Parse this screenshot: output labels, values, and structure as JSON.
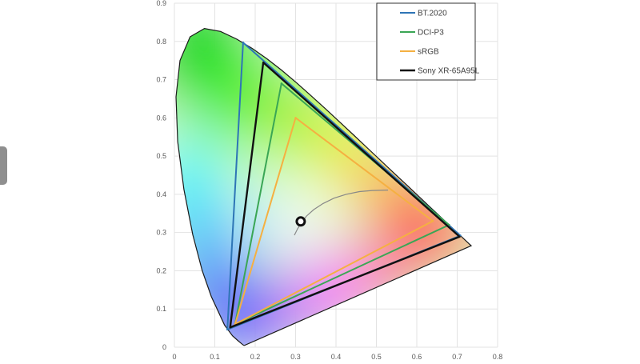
{
  "chart_data": {
    "type": "scatter",
    "title": "",
    "xlabel": "",
    "ylabel": "",
    "xlim": [
      0,
      0.8
    ],
    "ylim": [
      0,
      0.9
    ],
    "xticks": [
      "0",
      "0.1",
      "0.2",
      "0.3",
      "0.4",
      "0.5",
      "0.6",
      "0.7",
      "0.8"
    ],
    "yticks": [
      "0",
      "0.1",
      "0.2",
      "0.3",
      "0.4",
      "0.5",
      "0.6",
      "0.7",
      "0.8",
      "0.9"
    ],
    "grid": true,
    "legend_position": "top-right",
    "locus": [
      [
        0.1741,
        0.005
      ],
      [
        0.1738,
        0.0049
      ],
      [
        0.1733,
        0.0048
      ],
      [
        0.1726,
        0.0048
      ],
      [
        0.1714,
        0.0051
      ],
      [
        0.1689,
        0.0069
      ],
      [
        0.1644,
        0.0109
      ],
      [
        0.1566,
        0.0177
      ],
      [
        0.144,
        0.0297
      ],
      [
        0.1241,
        0.0578
      ],
      [
        0.0913,
        0.1327
      ],
      [
        0.0687,
        0.2007
      ],
      [
        0.0454,
        0.295
      ],
      [
        0.0235,
        0.4127
      ],
      [
        0.0082,
        0.5384
      ],
      [
        0.0039,
        0.6548
      ],
      [
        0.0139,
        0.7502
      ],
      [
        0.0389,
        0.812
      ],
      [
        0.0743,
        0.8338
      ],
      [
        0.1142,
        0.8262
      ],
      [
        0.1547,
        0.8059
      ],
      [
        0.1929,
        0.7816
      ],
      [
        0.2296,
        0.7543
      ],
      [
        0.2658,
        0.7243
      ],
      [
        0.3016,
        0.6923
      ],
      [
        0.3373,
        0.6589
      ],
      [
        0.3731,
        0.6245
      ],
      [
        0.4087,
        0.5896
      ],
      [
        0.4441,
        0.5547
      ],
      [
        0.4788,
        0.5202
      ],
      [
        0.5125,
        0.4866
      ],
      [
        0.5448,
        0.4544
      ],
      [
        0.5752,
        0.4242
      ],
      [
        0.6029,
        0.3965
      ],
      [
        0.627,
        0.3725
      ],
      [
        0.6482,
        0.3514
      ],
      [
        0.6658,
        0.334
      ],
      [
        0.6801,
        0.3197
      ],
      [
        0.6915,
        0.3083
      ],
      [
        0.7006,
        0.2993
      ],
      [
        0.7079,
        0.292
      ],
      [
        0.714,
        0.2859
      ],
      [
        0.719,
        0.2809
      ],
      [
        0.723,
        0.277
      ],
      [
        0.726,
        0.274
      ],
      [
        0.7283,
        0.2717
      ],
      [
        0.73,
        0.27
      ],
      [
        0.7311,
        0.2689
      ],
      [
        0.732,
        0.268
      ],
      [
        0.7334,
        0.2666
      ],
      [
        0.7347,
        0.2653
      ]
    ],
    "series": [
      {
        "name": "BT.2020",
        "color": "#2e75b6",
        "points": [
          [
            0.708,
            0.292
          ],
          [
            0.17,
            0.797
          ],
          [
            0.131,
            0.046
          ]
        ]
      },
      {
        "name": "DCI-P3",
        "color": "#3aa655",
        "points": [
          [
            0.68,
            0.32
          ],
          [
            0.265,
            0.69
          ],
          [
            0.15,
            0.06
          ]
        ]
      },
      {
        "name": "sRGB",
        "color": "#f5b041",
        "points": [
          [
            0.64,
            0.33
          ],
          [
            0.3,
            0.6
          ],
          [
            0.15,
            0.06
          ]
        ]
      },
      {
        "name": "Sony XR-65A95L",
        "color": "#111111",
        "points": [
          [
            0.706,
            0.289
          ],
          [
            0.22,
            0.745
          ],
          [
            0.138,
            0.052
          ]
        ]
      }
    ],
    "white_point": [
      0.3127,
      0.329
    ],
    "planckian_locus": [
      [
        0.297,
        0.293
      ],
      [
        0.305,
        0.31
      ],
      [
        0.314,
        0.325
      ],
      [
        0.327,
        0.343
      ],
      [
        0.345,
        0.36
      ],
      [
        0.368,
        0.376
      ],
      [
        0.395,
        0.39
      ],
      [
        0.425,
        0.4
      ],
      [
        0.458,
        0.407
      ],
      [
        0.49,
        0.41
      ],
      [
        0.529,
        0.411
      ]
    ]
  }
}
